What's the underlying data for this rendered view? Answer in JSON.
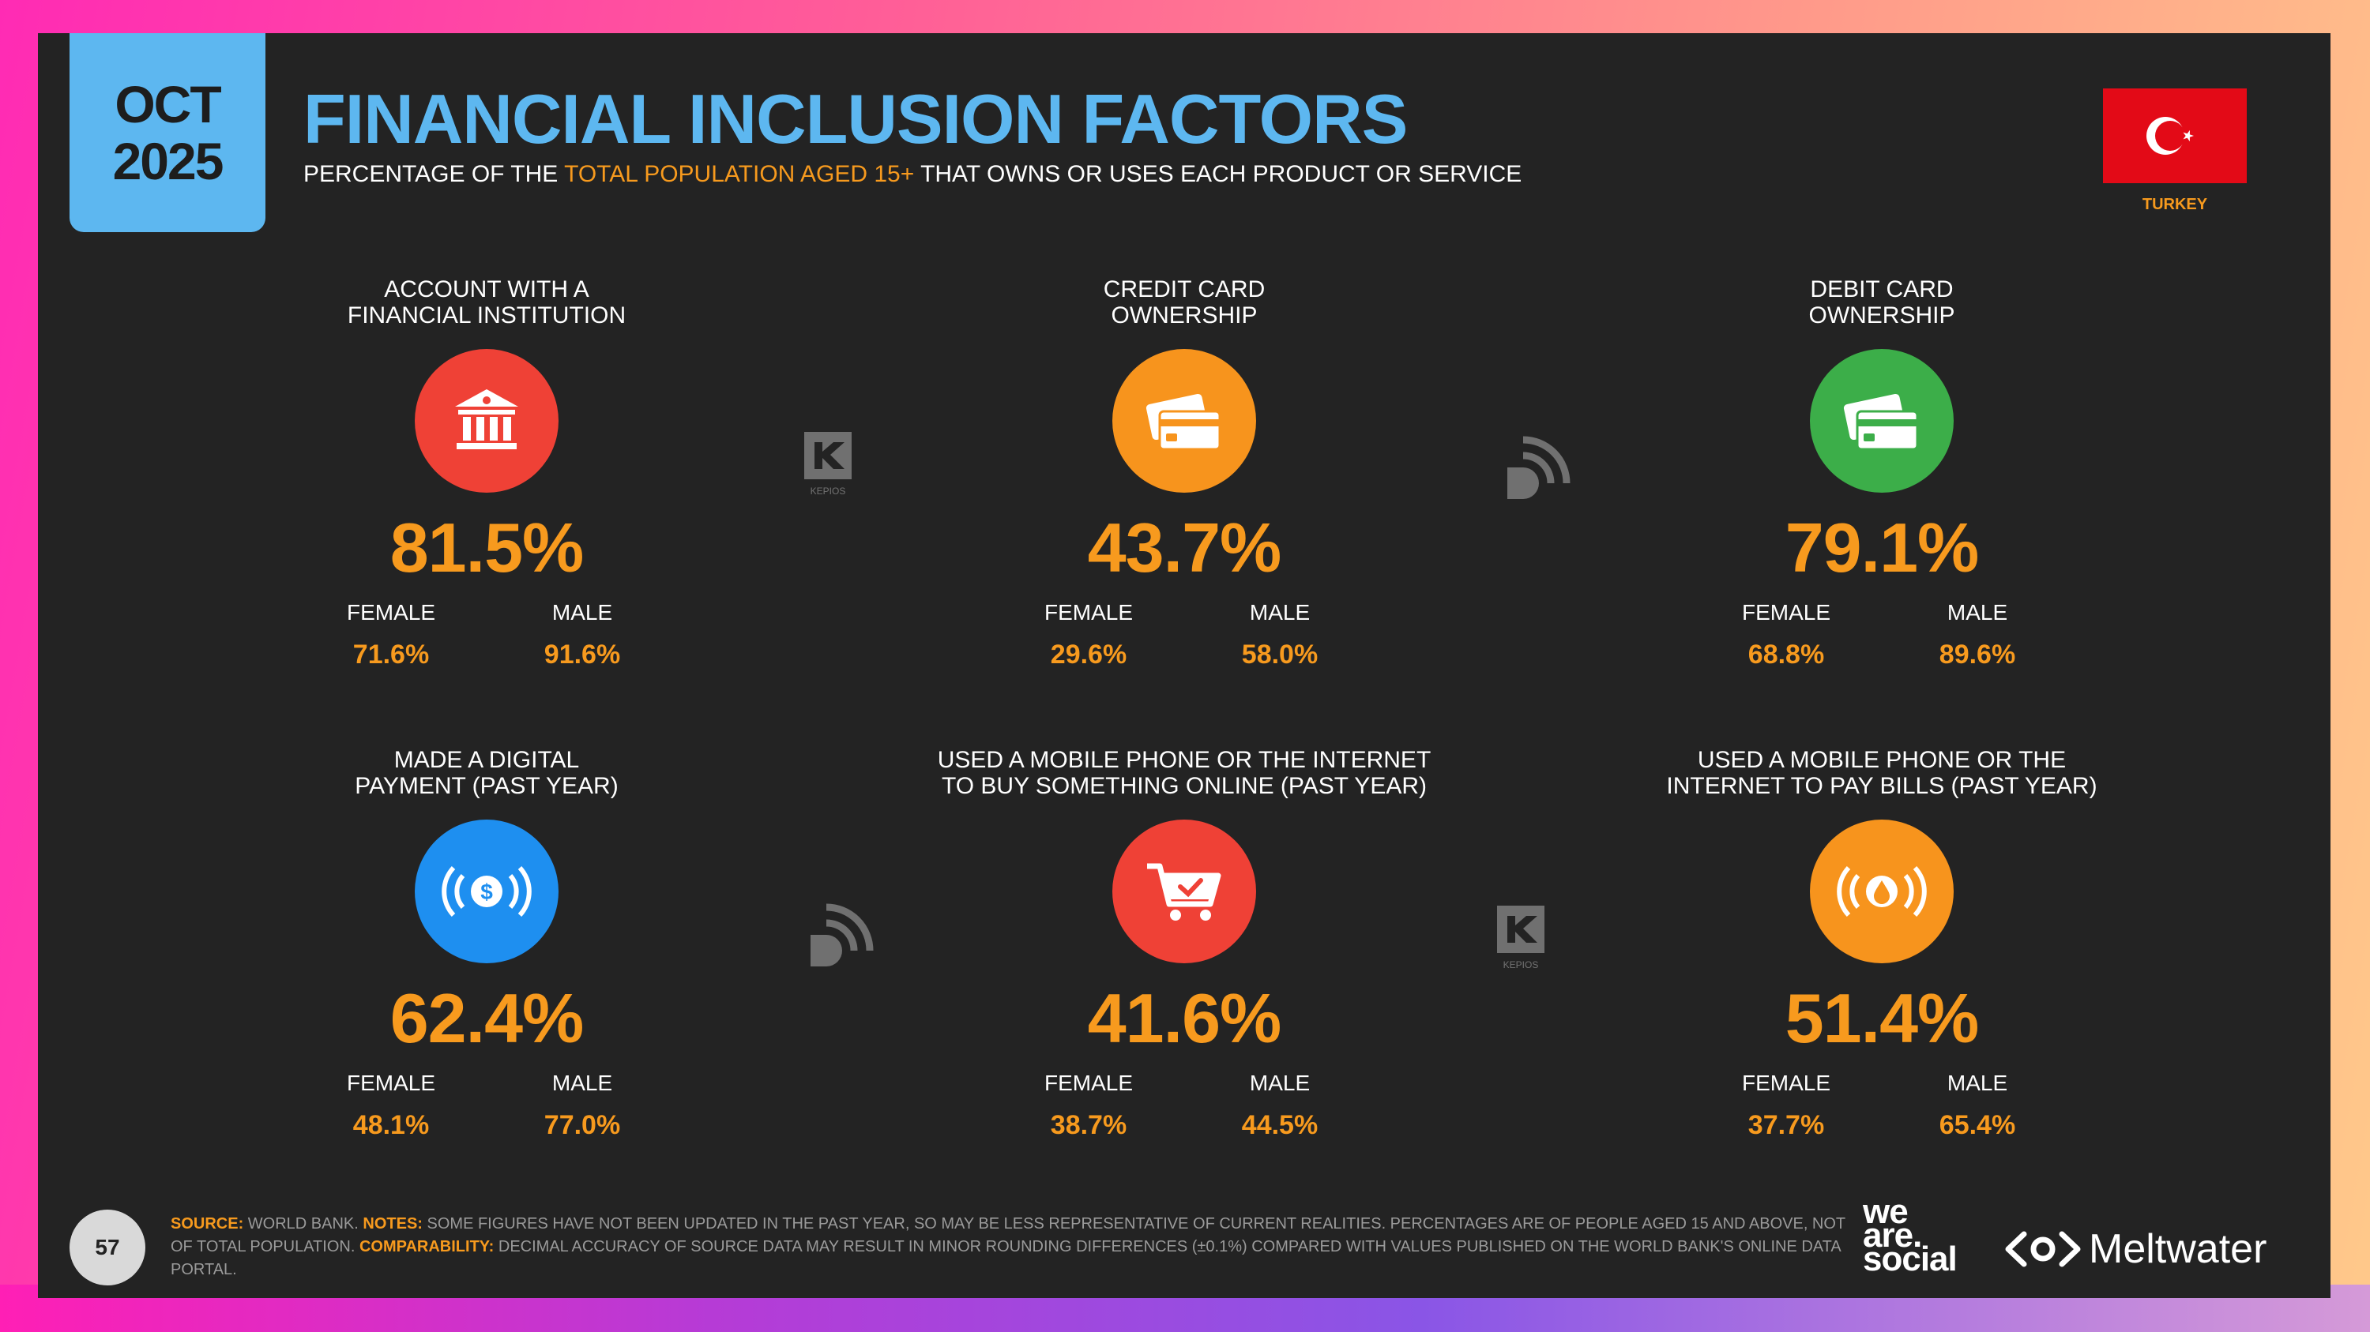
{
  "header": {
    "date_month": "OCT",
    "date_year": "2025",
    "title": "FINANCIAL INCLUSION FACTORS",
    "subtitle_pre": "PERCENTAGE OF THE",
    "subtitle_highlight": "TOTAL POPULATION AGED 15+",
    "subtitle_post": "THAT OWNS OR USES EACH PRODUCT OR SERVICE",
    "country": "TURKEY"
  },
  "colors": {
    "accent_orange": "#f79a1e",
    "accent_blue": "#5db7f0",
    "red": "#ef4136",
    "green": "#3cae49",
    "blue": "#1e8ff0",
    "background": "#232323"
  },
  "cards": [
    {
      "label_1": "ACCOUNT WITH A",
      "label_2": "FINANCIAL INSTITUTION",
      "icon": "bank-icon",
      "color": "#ef4136",
      "value": "81.5%",
      "female_label": "FEMALE",
      "female": "71.6%",
      "male_label": "MALE",
      "male": "91.6%"
    },
    {
      "label_1": "CREDIT CARD",
      "label_2": "OWNERSHIP",
      "icon": "credit-card-icon",
      "color": "#f7941d",
      "value": "43.7%",
      "female_label": "FEMALE",
      "female": "29.6%",
      "male_label": "MALE",
      "male": "58.0%"
    },
    {
      "label_1": "DEBIT CARD",
      "label_2": "OWNERSHIP",
      "icon": "debit-card-icon",
      "color": "#3cae49",
      "value": "79.1%",
      "female_label": "FEMALE",
      "female": "68.8%",
      "male_label": "MALE",
      "male": "89.6%"
    },
    {
      "label_1": "MADE A DIGITAL",
      "label_2": "PAYMENT (PAST YEAR)",
      "icon": "contactless-payment-icon",
      "color": "#1e8ff0",
      "value": "62.4%",
      "female_label": "FEMALE",
      "female": "48.1%",
      "male_label": "MALE",
      "male": "77.0%"
    },
    {
      "label_1": "USED A MOBILE PHONE OR THE INTERNET",
      "label_2": "TO BUY SOMETHING ONLINE (PAST YEAR)",
      "icon": "shopping-cart-icon",
      "color": "#ef4136",
      "value": "41.6%",
      "female_label": "FEMALE",
      "female": "38.7%",
      "male_label": "MALE",
      "male": "44.5%"
    },
    {
      "label_1": "USED A MOBILE PHONE OR THE",
      "label_2": "INTERNET TO PAY BILLS (PAST YEAR)",
      "icon": "bill-payment-icon",
      "color": "#f7941d",
      "value": "51.4%",
      "female_label": "FEMALE",
      "female": "37.7%",
      "male_label": "MALE",
      "male": "65.4%"
    }
  ],
  "watermarks": {
    "kepios": "KEPIOS"
  },
  "footer": {
    "page_number": "57",
    "source_key": "SOURCE:",
    "source_text": "WORLD BANK.",
    "notes_key": "NOTES:",
    "notes_text": "SOME FIGURES HAVE NOT BEEN UPDATED IN THE PAST YEAR, SO MAY BE LESS REPRESENTATIVE OF CURRENT REALITIES. PERCENTAGES ARE OF PEOPLE AGED 15 AND ABOVE, NOT OF TOTAL POPULATION.",
    "comparability_key": "COMPARABILITY:",
    "comparability_text": "DECIMAL ACCURACY OF SOURCE DATA MAY RESULT IN MINOR ROUNDING DIFFERENCES (±0.1%) COMPARED WITH VALUES PUBLISHED ON THE WORLD BANK'S ONLINE DATA PORTAL.",
    "logo_1_line1": "we",
    "logo_1_line2": "are.",
    "logo_1_line3": "social",
    "logo_2": "Meltwater"
  }
}
